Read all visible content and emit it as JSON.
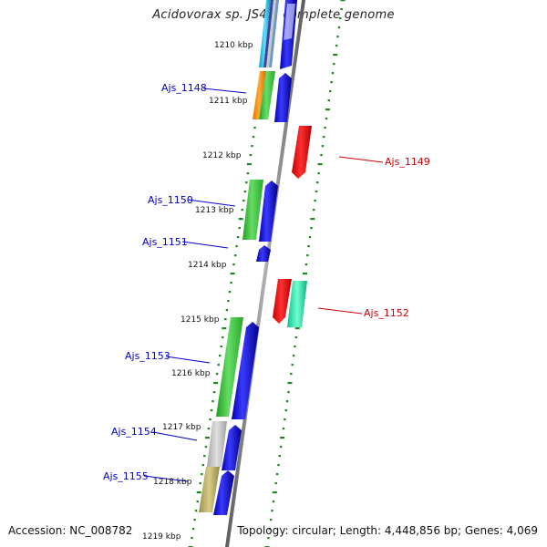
{
  "title": "Acidovorax sp. JS42, complete genome",
  "footer": {
    "accession": "Accession: NC_008782",
    "summary": "Topology: circular; Length: 4,448,856 bp; Genes: 4,069"
  },
  "colors": {
    "background": "#ffffff",
    "forward_label": "#0000cc",
    "reverse_label": "#cc0000",
    "axis": "#777777",
    "dots": "#1a8a1a"
  },
  "ticks": [
    {
      "label": "1210 kbp"
    },
    {
      "label": "1211 kbp"
    },
    {
      "label": "1212 kbp"
    },
    {
      "label": "1213 kbp"
    },
    {
      "label": "1214 kbp"
    },
    {
      "label": "1215 kbp"
    },
    {
      "label": "1216 kbp"
    },
    {
      "label": "1217 kbp"
    },
    {
      "label": "1218 kbp"
    },
    {
      "label": "1219 kbp"
    }
  ],
  "genes": [
    {
      "name": "Ajs_1148",
      "strand": "forward",
      "color": "#0000cc"
    },
    {
      "name": "Ajs_1149",
      "strand": "reverse",
      "color": "#cc0000"
    },
    {
      "name": "Ajs_1150",
      "strand": "forward",
      "color": "#0000cc"
    },
    {
      "name": "Ajs_1151",
      "strand": "forward",
      "color": "#0000cc"
    },
    {
      "name": "Ajs_1152",
      "strand": "reverse",
      "color": "#cc0000"
    },
    {
      "name": "Ajs_1153",
      "strand": "forward",
      "color": "#0000cc"
    },
    {
      "name": "Ajs_1154",
      "strand": "forward",
      "color": "#0000cc"
    },
    {
      "name": "Ajs_1155",
      "strand": "forward",
      "color": "#0000cc"
    }
  ]
}
